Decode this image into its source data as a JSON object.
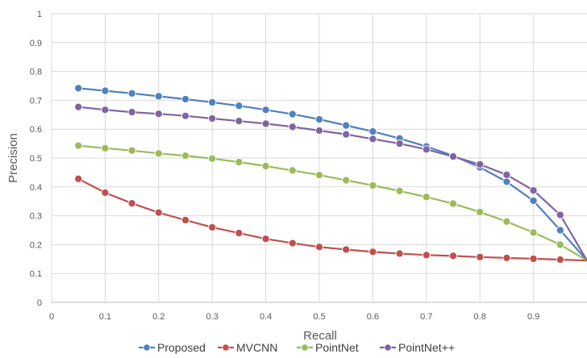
{
  "chart_data": {
    "type": "line",
    "xlabel": "Recall",
    "ylabel": "Precision",
    "xlim": [
      0,
      1
    ],
    "ylim": [
      0,
      1
    ],
    "x_ticks": [
      "0",
      "0.1",
      "0.2",
      "0.3",
      "0.4",
      "0.5",
      "0.6",
      "0.7",
      "0.8",
      "0.9"
    ],
    "y_ticks": [
      "0",
      "0.1",
      "0.2",
      "0.3",
      "0.4",
      "0.5",
      "0.6",
      "0.7",
      "0.8",
      "0.9",
      "1"
    ],
    "grid": true,
    "legend": "bottom",
    "x": [
      0.05,
      0.1,
      0.15,
      0.2,
      0.25,
      0.3,
      0.35,
      0.4,
      0.45,
      0.5,
      0.55,
      0.6,
      0.65,
      0.7,
      0.75,
      0.8,
      0.85,
      0.9,
      0.95,
      1.0
    ],
    "series": [
      {
        "name": "Proposed",
        "color": "#4f81bd",
        "values": [
          0.742,
          0.733,
          0.724,
          0.714,
          0.704,
          0.693,
          0.681,
          0.667,
          0.652,
          0.634,
          0.613,
          0.592,
          0.568,
          0.54,
          0.508,
          0.468,
          0.418,
          0.352,
          0.25,
          0.145
        ]
      },
      {
        "name": "MVCNN",
        "color": "#c0504d",
        "values": [
          0.428,
          0.38,
          0.343,
          0.311,
          0.285,
          0.26,
          0.24,
          0.22,
          0.205,
          0.192,
          0.183,
          0.175,
          0.169,
          0.164,
          0.161,
          0.157,
          0.154,
          0.151,
          0.148,
          0.145
        ]
      },
      {
        "name": "PointNet",
        "color": "#9bbb59",
        "values": [
          0.543,
          0.534,
          0.526,
          0.516,
          0.508,
          0.498,
          0.486,
          0.472,
          0.457,
          0.441,
          0.423,
          0.405,
          0.386,
          0.365,
          0.342,
          0.313,
          0.28,
          0.242,
          0.2,
          0.145
        ]
      },
      {
        "name": "PointNet++",
        "color": "#8064a2",
        "values": [
          0.677,
          0.667,
          0.659,
          0.653,
          0.646,
          0.637,
          0.628,
          0.619,
          0.608,
          0.595,
          0.582,
          0.566,
          0.55,
          0.53,
          0.505,
          0.478,
          0.442,
          0.388,
          0.303,
          0.145
        ]
      }
    ]
  }
}
